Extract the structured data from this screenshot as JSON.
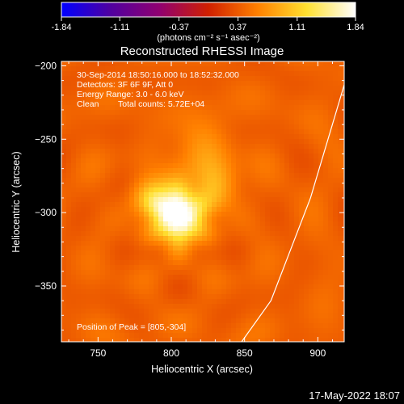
{
  "chart_data": {
    "type": "heatmap",
    "title": "Reconstructed RHESSI Image",
    "xlabel": "Heliocentric X (arcsec)",
    "ylabel": "Heliocentric Y (arcsec)",
    "xlim": [
      725,
      918
    ],
    "ylim": [
      -388,
      -197
    ],
    "x_ticks": [
      750,
      800,
      850,
      900
    ],
    "y_ticks": [
      -200,
      -250,
      -300,
      -350
    ],
    "colorbar": {
      "ticks": [
        "-1.84",
        "-1.11",
        "-0.37",
        "0.37",
        "1.11",
        "1.84"
      ],
      "range": [
        -1.84,
        1.84
      ],
      "unit_label": "(photons cm⁻² s⁻¹ asec⁻²)",
      "colormap": [
        "#0000ff",
        "#5000a0",
        "#900070",
        "#d02000",
        "#ff8000",
        "#ffe030",
        "#ffffff"
      ]
    },
    "annotations": {
      "time_range": "30-Sep-2014 18:50:16.000 to 18:52:32.000",
      "detectors": "Detectors: 3F 6F 9F, Att 0",
      "energy_range": "Energy Range: 3.0 - 6.0 keV",
      "algorithm": "Clean",
      "total_counts": "Total counts: 5.72E+04",
      "peak_label": "Position of Peak = [805,-304]"
    },
    "peak": {
      "x": 805,
      "y": -304
    },
    "sources": [
      {
        "x": 805,
        "y": -302,
        "amplitude": 1.7,
        "sigma": 12
      },
      {
        "x": 790,
        "y": -288,
        "amplitude": 0.6,
        "sigma": 10
      },
      {
        "x": 830,
        "y": -280,
        "amplitude": 0.5,
        "sigma": 11
      },
      {
        "x": 820,
        "y": -255,
        "amplitude": 0.3,
        "sigma": 14
      }
    ],
    "limb_curve": [
      [
        918,
        -213
      ],
      [
        895,
        -290
      ],
      [
        868,
        -360
      ],
      [
        848,
        -388
      ]
    ],
    "footer_date": "17-May-2022 18:07"
  }
}
